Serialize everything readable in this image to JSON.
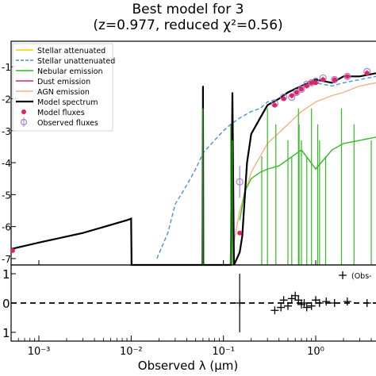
{
  "title_line1": "Best model for 3",
  "title_line2": "(z=0.977, reduced χ²=0.56)",
  "xlabel": "Observed λ (μm)",
  "upper_ytick_labels": [
    {
      "label": "-1",
      "value": -1
    },
    {
      "label": "-2",
      "value": -2
    },
    {
      "label": "-3",
      "value": -3
    },
    {
      "label": "-4",
      "value": -4
    },
    {
      "label": "-5",
      "value": -5
    },
    {
      "label": "-6",
      "value": -6
    },
    {
      "label": "-7",
      "value": -7
    }
  ],
  "lower_ytick_labels": [
    {
      "label": "1",
      "value": 1
    },
    {
      "label": "0",
      "value": 0
    },
    {
      "label": "1",
      "value": -1
    }
  ],
  "xtick_labels": [
    {
      "label": "10⁻³",
      "value": 0.001
    },
    {
      "label": "10⁻²",
      "value": 0.01
    },
    {
      "label": "10⁻¹",
      "value": 0.1
    },
    {
      "label": "10⁰",
      "value": 1
    }
  ],
  "legend": [
    {
      "label": "Stellar attenuated",
      "color": "#f0d000",
      "style": "solid"
    },
    {
      "label": "Stellar unattenuated",
      "color": "#4a90d9",
      "style": "dashed"
    },
    {
      "label": "Nebular emission",
      "color": "#33bb22",
      "style": "solid"
    },
    {
      "label": "Dust emission",
      "color": "#e0245e",
      "style": "solid"
    },
    {
      "label": "AGN emission",
      "color": "#f4b183",
      "style": "solid"
    },
    {
      "label": "Model spectrum",
      "color": "#000000",
      "style": "solid"
    },
    {
      "label": "Model fluxes",
      "color": "#e0245e",
      "style": "marker"
    },
    {
      "label": "Observed fluxes",
      "color": "#a782d0",
      "style": "marker-errorbar"
    }
  ],
  "residual_legend_label": "(Obs-",
  "chart_data": [
    {
      "type": "line",
      "panel": "upper",
      "xscale": "log",
      "xlim": [
        0.0005,
        4.5
      ],
      "ylim": [
        -7.2,
        -0.2
      ],
      "series": [
        {
          "name": "Model spectrum",
          "color": "#000000",
          "x": [
            0.0005,
            0.001,
            0.003,
            0.009,
            0.01,
            0.0101,
            0.0595,
            0.06,
            0.0605,
            0.12,
            0.125,
            0.13,
            0.14,
            0.15,
            0.16,
            0.18,
            0.2,
            0.25,
            0.3,
            0.4,
            0.5,
            0.7,
            1,
            1.5,
            2,
            3,
            4.5
          ],
          "y": [
            -6.7,
            -6.5,
            -6.2,
            -5.8,
            -5.75,
            -7.2,
            -7.2,
            -1.6,
            -7.2,
            -7.2,
            -1.8,
            -7.2,
            -7.0,
            -6.8,
            -6.3,
            -4.0,
            -3.1,
            -2.6,
            -2.2,
            -2.0,
            -1.8,
            -1.6,
            -1.4,
            -1.5,
            -1.3,
            -1.3,
            -1.2
          ]
        },
        {
          "name": "Stellar unattenuated",
          "color": "#4a90d9",
          "x": [
            0.019,
            0.025,
            0.03,
            0.04,
            0.05,
            0.06,
            0.08,
            0.1,
            0.12,
            0.15,
            0.2,
            0.25,
            0.3,
            0.4,
            0.5,
            0.7,
            1,
            1.5,
            2,
            3,
            4.5
          ],
          "y": [
            -7.0,
            -6.2,
            -5.3,
            -4.7,
            -4.2,
            -3.7,
            -3.3,
            -3.0,
            -2.8,
            -2.6,
            -2.4,
            -2.3,
            -2.1,
            -2.0,
            -1.8,
            -1.6,
            -1.5,
            -1.6,
            -1.5,
            -1.4,
            -1.3
          ]
        },
        {
          "name": "AGN emission",
          "color": "#f4b183",
          "x": [
            0.13,
            0.15,
            0.2,
            0.3,
            0.5,
            0.7,
            1,
            1.5,
            2,
            3,
            4.5
          ],
          "y": [
            -6.5,
            -5.5,
            -4.3,
            -3.4,
            -2.8,
            -2.4,
            -2.1,
            -1.9,
            -1.8,
            -1.6,
            -1.5
          ]
        },
        {
          "name": "Nebular emission",
          "color": "#33bb22",
          "x": [
            0.15,
            0.17,
            0.2,
            0.25,
            0.3,
            0.4,
            0.5,
            0.7,
            1,
            1.5,
            2,
            3,
            4.5
          ],
          "y": [
            -5.8,
            -4.9,
            -4.5,
            -4.3,
            -4.2,
            -4.1,
            -3.9,
            -3.6,
            -4.2,
            -3.6,
            -3.4,
            -3.3,
            -3.2
          ]
        }
      ],
      "emission_lines_x": [
        0.06,
        0.12,
        0.125,
        0.26,
        0.3,
        0.37,
        0.5,
        0.55,
        0.65,
        0.66,
        0.7,
        0.8,
        0.9,
        1.05,
        1.1,
        1.28,
        1.9,
        2.6,
        4.0
      ],
      "model_fluxes": {
        "x": [
          0.00052,
          0.15,
          0.36,
          0.45,
          0.55,
          0.62,
          0.7,
          0.8,
          0.9,
          1.0,
          1.2,
          1.6,
          2.2,
          3.6
        ],
        "y": [
          -6.75,
          -6.2,
          -2.2,
          -2.0,
          -1.9,
          -1.8,
          -1.7,
          -1.6,
          -1.5,
          -1.5,
          -1.4,
          -1.4,
          -1.3,
          -1.2
        ]
      },
      "observed_fluxes": {
        "x": [
          0.15,
          0.36,
          0.45,
          0.55,
          0.62,
          0.7,
          0.8,
          0.9,
          1.0,
          1.2,
          1.6,
          2.2,
          3.6
        ],
        "y": [
          -4.6,
          -2.15,
          -1.95,
          -1.95,
          -1.8,
          -1.7,
          -1.55,
          -1.5,
          -1.45,
          -1.35,
          -1.4,
          -1.3,
          -1.15
        ],
        "err": [
          0.5,
          0.05,
          0.05,
          0.05,
          0.05,
          0.05,
          0.05,
          0.05,
          0.05,
          0.05,
          0.05,
          0.05,
          0.05
        ]
      }
    },
    {
      "type": "scatter",
      "panel": "lower",
      "xscale": "log",
      "xlim": [
        0.0005,
        4.5
      ],
      "ylim": [
        -1.3,
        1.3
      ],
      "reference_line_y": 0,
      "x": [
        0.15,
        0.36,
        0.42,
        0.45,
        0.5,
        0.55,
        0.6,
        0.65,
        0.7,
        0.75,
        0.8,
        0.9,
        1.0,
        1.1,
        1.3,
        1.6,
        2.2,
        3.6
      ],
      "y": [
        0.0,
        -0.25,
        -0.15,
        0.1,
        -0.1,
        0.15,
        0.25,
        0.1,
        -0.05,
        0.0,
        -0.15,
        -0.1,
        0.1,
        0.0,
        0.05,
        0.0,
        0.05,
        0.0
      ],
      "err_x": [
        0.15
      ],
      "err_y": [
        0.0
      ],
      "err_size": [
        1.0
      ]
    }
  ]
}
